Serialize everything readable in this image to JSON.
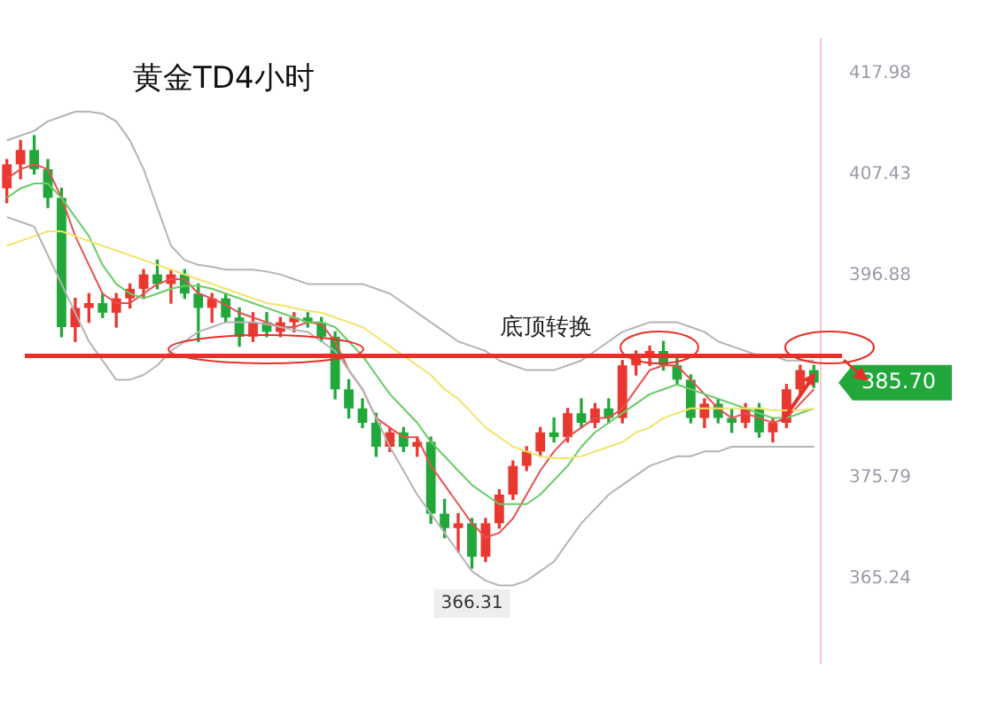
{
  "chart_data": {
    "type": "candlestick",
    "title": "黄金TD4小时",
    "categories": [
      null,
      null,
      null,
      null,
      null,
      null,
      null,
      null,
      null,
      null,
      null,
      null,
      null,
      null,
      null,
      null,
      null,
      null,
      null,
      null,
      null,
      null,
      null,
      null,
      null,
      null,
      null,
      null,
      null,
      null,
      null,
      null,
      null,
      null,
      null,
      null,
      null,
      null,
      null,
      null,
      null,
      null,
      null,
      null,
      null,
      null,
      null,
      null,
      null,
      null,
      null,
      null,
      null,
      null,
      null,
      null,
      null,
      null,
      null,
      null
    ],
    "ohlc": [
      [
        406,
        409,
        404.5,
        408.5
      ],
      [
        408.5,
        411,
        407,
        410
      ],
      [
        410,
        411.5,
        407.5,
        408
      ],
      [
        408,
        409,
        404,
        405
      ],
      [
        405,
        406,
        390.5,
        391.5
      ],
      [
        391.5,
        394.5,
        390,
        393.5
      ],
      [
        393.5,
        395,
        392,
        394
      ],
      [
        394,
        395,
        392.5,
        393
      ],
      [
        393,
        395,
        391.5,
        394.5
      ],
      [
        394.5,
        396,
        393.5,
        395.5
      ],
      [
        395.5,
        397.5,
        394.5,
        397
      ],
      [
        397,
        398.5,
        395.5,
        396
      ],
      [
        396,
        397.5,
        394,
        397
      ],
      [
        397,
        397.5,
        394.5,
        395
      ],
      [
        395,
        396,
        390,
        393.5
      ],
      [
        393.5,
        395,
        392,
        394.5
      ],
      [
        394.5,
        395,
        392,
        392.5
      ],
      [
        392.5,
        393.5,
        389.5,
        390.5
      ],
      [
        390.5,
        393,
        390,
        392
      ],
      [
        392,
        393,
        390.5,
        391
      ],
      [
        391,
        392.5,
        390.5,
        392
      ],
      [
        392,
        393,
        391,
        392.5
      ],
      [
        392.5,
        393,
        391.5,
        392
      ],
      [
        392,
        392.5,
        390,
        390.5
      ],
      [
        390.5,
        391,
        384,
        385
      ],
      [
        385,
        386,
        382,
        383
      ],
      [
        383,
        384,
        381,
        381.5
      ],
      [
        381.5,
        382.5,
        378,
        379
      ],
      [
        379,
        381,
        378.5,
        380.5
      ],
      [
        380.5,
        381,
        378.5,
        379
      ],
      [
        379,
        380,
        378,
        379.5
      ],
      [
        379.5,
        380,
        371,
        372
      ],
      [
        372,
        373.5,
        369.5,
        370.5
      ],
      [
        370.5,
        372,
        368,
        371
      ],
      [
        371,
        371.5,
        366.31,
        367.5
      ],
      [
        367.5,
        371.5,
        367,
        371
      ],
      [
        371,
        374.5,
        370.5,
        374
      ],
      [
        374,
        377.5,
        373.5,
        377
      ],
      [
        377,
        379,
        376.5,
        378.5
      ],
      [
        378.5,
        381,
        378,
        380.5
      ],
      [
        380.5,
        382,
        379.5,
        380
      ],
      [
        380,
        383,
        379.5,
        382.5
      ],
      [
        382.5,
        384,
        381,
        381.5
      ],
      [
        381.5,
        383.5,
        381,
        383
      ],
      [
        383,
        384,
        381.5,
        382
      ],
      [
        382,
        388,
        381.5,
        387.5
      ],
      [
        387.5,
        389,
        386.5,
        388.5
      ],
      [
        388.5,
        389.5,
        387.5,
        389
      ],
      [
        389,
        390,
        387,
        387.5
      ],
      [
        387.5,
        388.5,
        385.5,
        386
      ],
      [
        386,
        386.5,
        381.5,
        382
      ],
      [
        382,
        384,
        381,
        383.5
      ],
      [
        383.5,
        384,
        381.5,
        382
      ],
      [
        382,
        383,
        380.5,
        381.5
      ],
      [
        381.5,
        383.5,
        381,
        383
      ],
      [
        383,
        383.5,
        380,
        380.5
      ],
      [
        380.5,
        382,
        379.5,
        381.5
      ],
      [
        381.5,
        385.5,
        381,
        385
      ],
      [
        385,
        387.5,
        384.5,
        387
      ],
      [
        387,
        387.5,
        385.2,
        385.7
      ]
    ],
    "colors": [
      "#e8382f",
      "#e8382f",
      "#22a73a",
      "#22a73a",
      "#22a73a",
      "#e8382f",
      "#e8382f",
      "#22a73a",
      "#e8382f",
      "#e8382f",
      "#e8382f",
      "#22a73a",
      "#e8382f",
      "#22a73a",
      "#22a73a",
      "#e8382f",
      "#22a73a",
      "#22a73a",
      "#e8382f",
      "#22a73a",
      "#e8382f",
      "#e8382f",
      "#22a73a",
      "#22a73a",
      "#22a73a",
      "#22a73a",
      "#22a73a",
      "#22a73a",
      "#e8382f",
      "#22a73a",
      "#e8382f",
      "#22a73a",
      "#22a73a",
      "#e8382f",
      "#22a73a",
      "#e8382f",
      "#e8382f",
      "#e8382f",
      "#e8382f",
      "#e8382f",
      "#22a73a",
      "#e8382f",
      "#22a73a",
      "#e8382f",
      "#22a73a",
      "#e8382f",
      "#e8382f",
      "#e8382f",
      "#22a73a",
      "#22a73a",
      "#22a73a",
      "#e8382f",
      "#22a73a",
      "#22a73a",
      "#e8382f",
      "#22a73a",
      "#e8382f",
      "#e8382f",
      "#e8382f",
      "#22a73a"
    ],
    "series": [
      {
        "type": "line",
        "color": "#b4b4b4",
        "values": [
          411,
          411.5,
          412,
          413,
          413.5,
          414,
          414,
          413.8,
          413,
          411,
          408,
          404,
          400,
          398.5,
          398,
          397.8,
          397.5,
          397.5,
          397.5,
          397.3,
          397,
          396.5,
          396,
          396,
          396,
          396,
          396,
          395.5,
          395,
          394,
          393,
          392,
          391,
          390,
          389.5,
          389,
          388,
          387.5,
          387,
          387,
          387,
          387.5,
          388,
          389,
          390,
          391,
          391.5,
          392,
          392,
          392,
          391.5,
          391,
          390,
          389.5,
          389,
          388.5,
          388.5,
          388,
          388,
          388
        ]
      },
      {
        "type": "line",
        "color": "#b4b4b4",
        "values": [
          403,
          402.5,
          402,
          399,
          396,
          393,
          390,
          388,
          386,
          386,
          386.5,
          387.5,
          389,
          390,
          391,
          391.5,
          392,
          392,
          392,
          391.8,
          391.5,
          391.2,
          391,
          390,
          389,
          387,
          385,
          382,
          379,
          376.5,
          374,
          372,
          370,
          368,
          366,
          365,
          364.5,
          364.5,
          365,
          366,
          367,
          369,
          371,
          372.5,
          374,
          375,
          376,
          377,
          377.5,
          378,
          378,
          378.5,
          378.5,
          379,
          379,
          379,
          379,
          379,
          379,
          379
        ]
      },
      {
        "type": "line",
        "color": "#f2e46a",
        "values": [
          400,
          400.5,
          401,
          401.5,
          401.5,
          401,
          400.5,
          400,
          399.5,
          399,
          398.5,
          398,
          397.5,
          397,
          396.5,
          396,
          395.5,
          395,
          394.5,
          394,
          393.8,
          393.5,
          393.2,
          393,
          392.5,
          392,
          391.5,
          390.5,
          389.5,
          388.5,
          387.5,
          386.5,
          385,
          384,
          382.5,
          381,
          380,
          379,
          378.5,
          378,
          377.8,
          377.8,
          378,
          378.5,
          379,
          379.5,
          380.5,
          381,
          382,
          382.5,
          383,
          383,
          383,
          383,
          383,
          383,
          382.8,
          382.8,
          382.8,
          383
        ]
      },
      {
        "type": "line",
        "color": "#66cc66",
        "values": [
          405,
          406,
          406.5,
          406.5,
          405,
          403,
          401,
          398,
          396,
          395,
          394.5,
          395,
          395.5,
          395.8,
          395.8,
          395.5,
          395,
          394.5,
          394,
          393.5,
          393,
          392.5,
          392,
          392,
          391.5,
          390,
          388.5,
          386.5,
          384.5,
          383,
          381.5,
          379.5,
          378,
          376.5,
          375,
          374,
          373,
          373,
          373,
          374,
          375.5,
          377,
          379,
          380.5,
          381.5,
          382.5,
          383.5,
          384.5,
          385,
          385.5,
          385,
          384.5,
          384,
          383.5,
          383,
          382.5,
          382,
          382,
          382.5,
          383
        ]
      },
      {
        "type": "line",
        "color": "#e85050",
        "values": [
          407,
          408,
          408.5,
          408,
          405,
          401,
          398,
          395,
          394,
          394,
          395,
          396,
          396.5,
          396.5,
          395,
          394.5,
          393.8,
          393,
          392.5,
          392,
          391.5,
          391.5,
          392,
          391.8,
          390,
          387,
          385,
          382,
          381,
          380,
          380,
          377,
          375,
          373,
          371,
          369.5,
          370,
          371.5,
          374,
          376.5,
          378.5,
          380,
          381,
          382,
          382,
          383,
          385,
          387,
          387.5,
          387.5,
          386,
          384.5,
          383,
          382,
          382.5,
          382,
          381.5,
          382,
          383.5,
          385
        ]
      }
    ],
    "ylim": [
      356.4,
      421.6
    ],
    "yticks": [
      417.98,
      407.43,
      396.88,
      375.79,
      365.24
    ],
    "tick_labels": "y",
    "ref_lines": [
      {
        "axis": "y",
        "value": 388.5,
        "label": "底顶转换",
        "color": "#e8302a"
      }
    ],
    "annotations": [
      {
        "text": "366.31",
        "y": 366.31
      },
      "385.70"
    ]
  }
}
